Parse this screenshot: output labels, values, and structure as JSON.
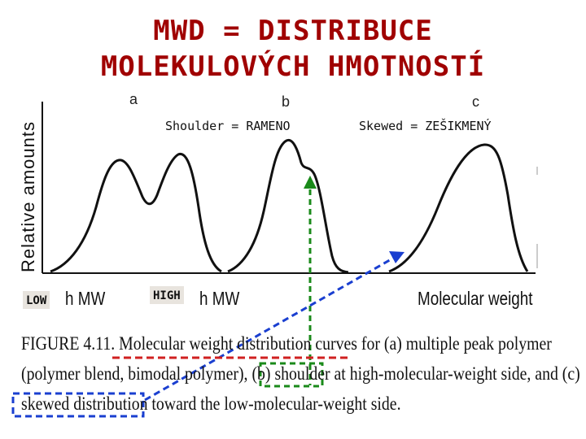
{
  "slide": {
    "title_line1": "MWD = DISTRIBUCE",
    "title_line2": "MOLEKULOVÝCH HMOTNOSTÍ"
  },
  "figure": {
    "ylabel": "Relative amounts",
    "panels": [
      {
        "letter": "a",
        "xlabel_suffix": "h MW"
      },
      {
        "letter": "b",
        "xlabel_suffix": "h MW"
      },
      {
        "letter": "c",
        "xlabel": "Molecular weight"
      }
    ],
    "caption": {
      "line1": "FIGURE 4.11.  Molecular weight distribution curves for (a) multiple peak polymer",
      "line2": "(polymer blend, bimodal polymer), (b) shoulder at high-molecular-weight side, and (c)",
      "line3": "skewed distribution toward the low-molecular-weight side."
    }
  },
  "annotations": {
    "shoulder": "Shoulder = RAMENO",
    "skewed": "Skewed = ZEŠIKMENÝ",
    "low": "LOW",
    "high": "HIGH"
  },
  "colors": {
    "title": "#a00000",
    "green_arrow": "#1a8a1a",
    "blue_arrow": "#1a3fd0",
    "red_dash": "#d02020"
  }
}
